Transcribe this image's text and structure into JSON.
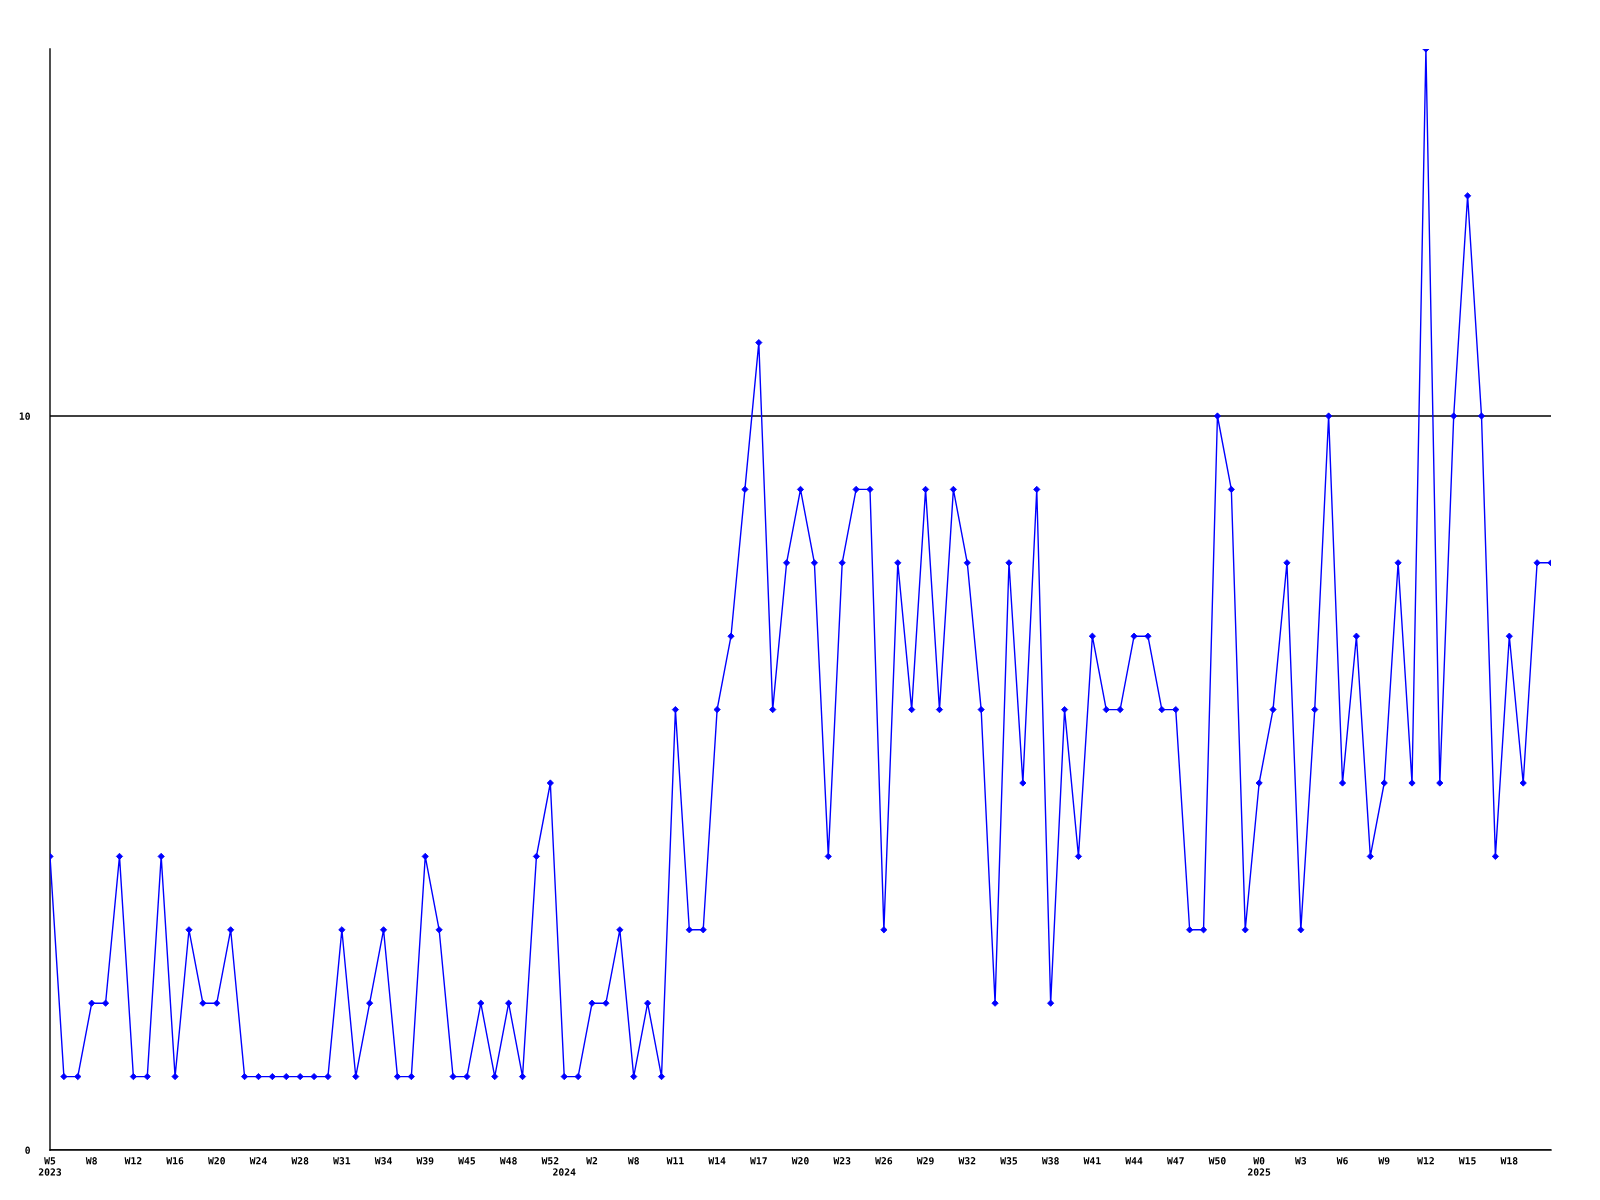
{
  "chart_data": {
    "type": "line",
    "categories": [
      "W5\n2023",
      null,
      null,
      "W8",
      null,
      null,
      "W12",
      null,
      null,
      "W16",
      null,
      null,
      "W20",
      null,
      null,
      "W24",
      null,
      null,
      "W28",
      null,
      null,
      "W31",
      null,
      null,
      "W34",
      null,
      null,
      "W39",
      null,
      null,
      "W45",
      null,
      null,
      "W48",
      null,
      null,
      "W52",
      "\n2024",
      null,
      "W2",
      null,
      null,
      "W8",
      null,
      null,
      "W11",
      null,
      null,
      "W14",
      null,
      null,
      "W17",
      null,
      null,
      "W20",
      null,
      null,
      "W23",
      null,
      null,
      "W26",
      null,
      null,
      "W29",
      null,
      null,
      "W32",
      null,
      null,
      "W35",
      null,
      null,
      "W38",
      null,
      null,
      "W41",
      null,
      null,
      "W44",
      null,
      null,
      "W47",
      null,
      null,
      "W50",
      null,
      null,
      "W0\n2025",
      null,
      null,
      "W3",
      null,
      null,
      "W6",
      null,
      null,
      "W9",
      null,
      null,
      "W12",
      null,
      null,
      "W15",
      null,
      null,
      "W18",
      null,
      null,
      null
    ],
    "series": [
      {
        "color": "#0000ff",
        "values": [
          4,
          1,
          1,
          2,
          2,
          4,
          1,
          1,
          4,
          1,
          3,
          2,
          2,
          3,
          1,
          1,
          1,
          1,
          1,
          1,
          1,
          3,
          1,
          2,
          3,
          1,
          1,
          4,
          3,
          1,
          1,
          2,
          1,
          2,
          1,
          4,
          5,
          1,
          1,
          2,
          2,
          3,
          1,
          2,
          1,
          6,
          3,
          3,
          6,
          7,
          9,
          11,
          6,
          8,
          9,
          8,
          4,
          8,
          9,
          9,
          3,
          8,
          6,
          9,
          6,
          9,
          8,
          6,
          2,
          8,
          5,
          9,
          2,
          6,
          4,
          7,
          6,
          6,
          7,
          7,
          6,
          6,
          3,
          3,
          10,
          9,
          3,
          5,
          6,
          8,
          3,
          6,
          10,
          5,
          7,
          4,
          5,
          8,
          5,
          15,
          5,
          10,
          13,
          10,
          4,
          7,
          5,
          8,
          8
        ]
      }
    ],
    "ylim": [
      0,
      15
    ],
    "yticks": [
      0,
      10
    ],
    "grid": "y",
    "marker": "diamond",
    "line_style": "solid"
  }
}
